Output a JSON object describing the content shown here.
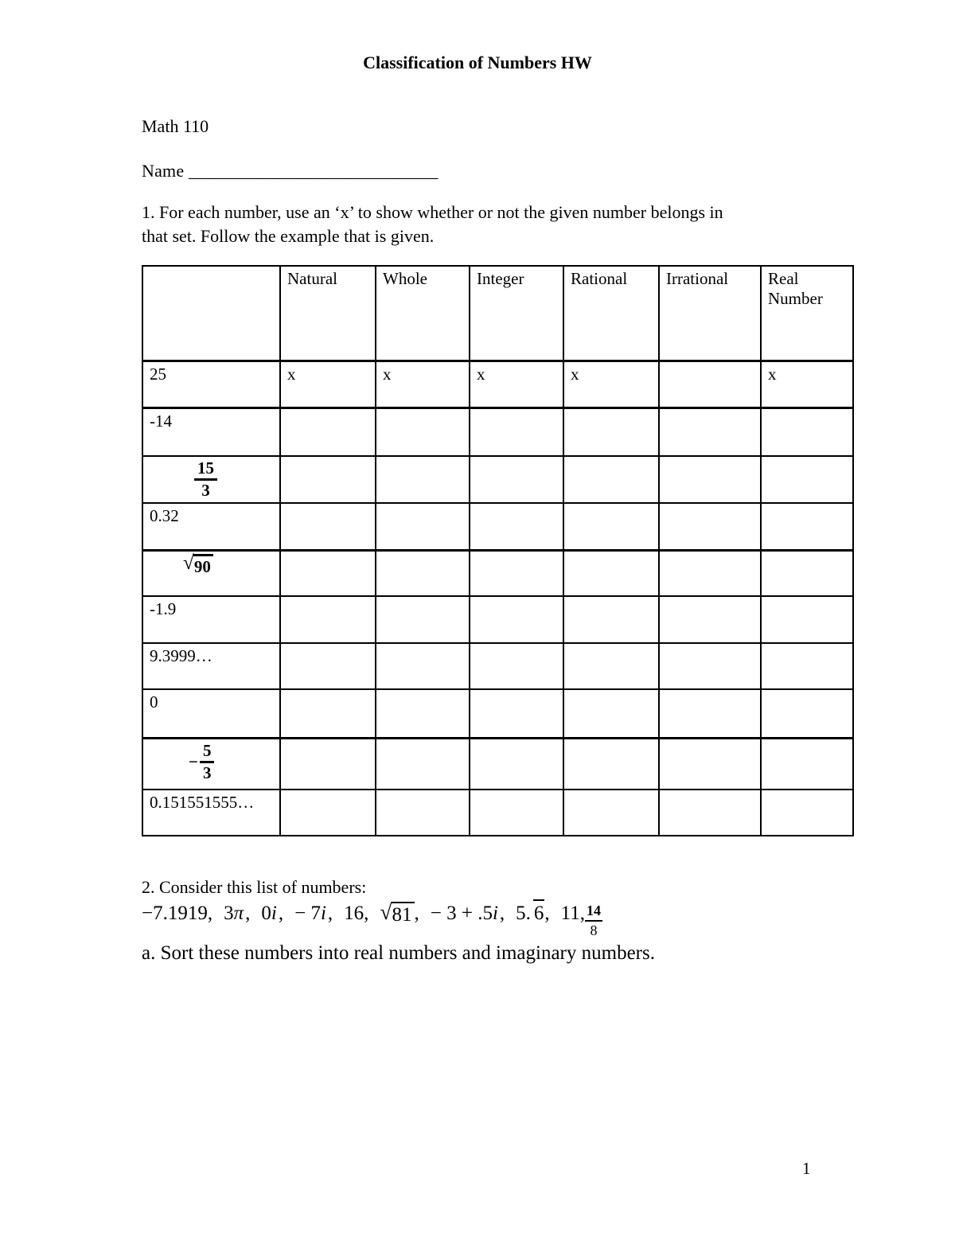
{
  "header": {
    "title": "Classification of Numbers HW"
  },
  "meta": {
    "course": "Math 110",
    "name_line": "Name ____________________________"
  },
  "q1": {
    "instructions_line1": "1. For each number, use an ‘x’ to show whether or not the given number belongs in",
    "instructions_line2": "that set. Follow the example that is given."
  },
  "table": {
    "columns": [
      "",
      "Natural",
      "Whole",
      "Integer",
      "Rational",
      "Irrational",
      "Real Number"
    ],
    "rows": [
      {
        "label": {
          "type": "plain",
          "text": "25"
        },
        "marks": [
          "x",
          "x",
          "x",
          "x",
          "",
          "x"
        ]
      },
      {
        "label": {
          "type": "plain",
          "text": "-14"
        },
        "marks": [
          "",
          "",
          "",
          "",
          "",
          ""
        ]
      },
      {
        "label": {
          "type": "fraction",
          "sign": "",
          "num": "15",
          "den": "3"
        },
        "marks": [
          "",
          "",
          "",
          "",
          "",
          ""
        ]
      },
      {
        "label": {
          "type": "plain",
          "text": "0.32"
        },
        "marks": [
          "",
          "",
          "",
          "",
          "",
          ""
        ]
      },
      {
        "label": {
          "type": "sqrt",
          "radicand": "90"
        },
        "marks": [
          "",
          "",
          "",
          "",
          "",
          ""
        ]
      },
      {
        "label": {
          "type": "plain",
          "text": "-1.9"
        },
        "marks": [
          "",
          "",
          "",
          "",
          "",
          ""
        ]
      },
      {
        "label": {
          "type": "plain",
          "text": "9.3999…"
        },
        "marks": [
          "",
          "",
          "",
          "",
          "",
          ""
        ]
      },
      {
        "label": {
          "type": "plain",
          "text": "0"
        },
        "marks": [
          "",
          "",
          "",
          "",
          "",
          ""
        ]
      },
      {
        "label": {
          "type": "fraction",
          "sign": "−",
          "num": "5",
          "den": "3"
        },
        "marks": [
          "",
          "",
          "",
          "",
          "",
          ""
        ]
      },
      {
        "label": {
          "type": "plain",
          "text": "0.151551555…"
        },
        "marks": [
          "",
          "",
          "",
          "",
          "",
          ""
        ]
      }
    ]
  },
  "q2": {
    "intro": "2. Consider this list of numbers:",
    "math_tokens": [
      {
        "type": "text",
        "v": "−7.1919,"
      },
      {
        "type": "gap"
      },
      {
        "type": "text",
        "v": "3"
      },
      {
        "type": "var",
        "v": "π"
      },
      {
        "type": "text",
        "v": ","
      },
      {
        "type": "gap"
      },
      {
        "type": "text",
        "v": "0"
      },
      {
        "type": "var",
        "v": "i"
      },
      {
        "type": "text",
        "v": ","
      },
      {
        "type": "gap"
      },
      {
        "type": "text",
        "v": "− 7"
      },
      {
        "type": "var",
        "v": "i"
      },
      {
        "type": "text",
        "v": ","
      },
      {
        "type": "gap"
      },
      {
        "type": "text",
        "v": "16,"
      },
      {
        "type": "gap"
      },
      {
        "type": "sqrt",
        "v": "81"
      },
      {
        "type": "text",
        "v": ","
      },
      {
        "type": "gap"
      },
      {
        "type": "text",
        "v": "− 3 + .5"
      },
      {
        "type": "var",
        "v": "i"
      },
      {
        "type": "text",
        "v": ","
      },
      {
        "type": "gap"
      },
      {
        "type": "text",
        "v": "5."
      },
      {
        "type": "over",
        "v": "6"
      },
      {
        "type": "text",
        "v": ","
      },
      {
        "type": "gap"
      },
      {
        "type": "text",
        "v": "11,"
      },
      {
        "type": "frac",
        "num": "14",
        "den": "8"
      }
    ],
    "part_a": "a. Sort these numbers into real numbers and imaginary numbers."
  },
  "page": {
    "number": "1"
  }
}
